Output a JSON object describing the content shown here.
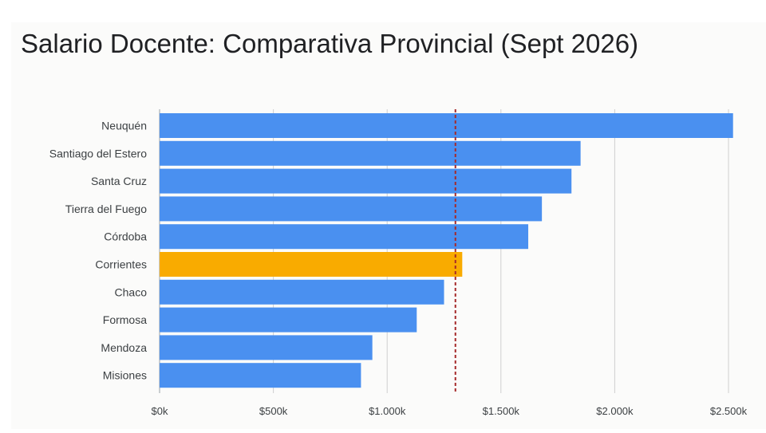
{
  "chart_data": {
    "type": "bar",
    "orientation": "horizontal",
    "title": "Salario Docente: Comparativa Provincial (Sept 2026)",
    "categories": [
      "Neuquén",
      "Santiago del Estero",
      "Santa Cruz",
      "Tierra del Fuego",
      "Córdoba",
      "Corrientes",
      "Chaco",
      "Formosa",
      "Mendoza",
      "Misiones"
    ],
    "values": [
      2520000,
      1850000,
      1810000,
      1680000,
      1620000,
      1330000,
      1250000,
      1130000,
      935000,
      885000
    ],
    "highlighted_category": "Corrientes",
    "reference_line": {
      "value": 1300000,
      "style": "dashed",
      "color": "#a52a2a"
    },
    "xlim": [
      0,
      2500000
    ],
    "xticks": [
      0,
      500000,
      1000000,
      1500000,
      2000000,
      2500000
    ],
    "xtick_labels": [
      "$0k",
      "$500k",
      "$1.000k",
      "$1.500k",
      "$2.000k",
      "$2.500k"
    ],
    "xlabel": "",
    "ylabel": "",
    "grid": "vertical",
    "legend": "none",
    "colors": {
      "bar": "#4a90f0",
      "highlight": "#f9ab00",
      "grid": "#cfcfcf",
      "axis_text": "#3c4043"
    }
  }
}
